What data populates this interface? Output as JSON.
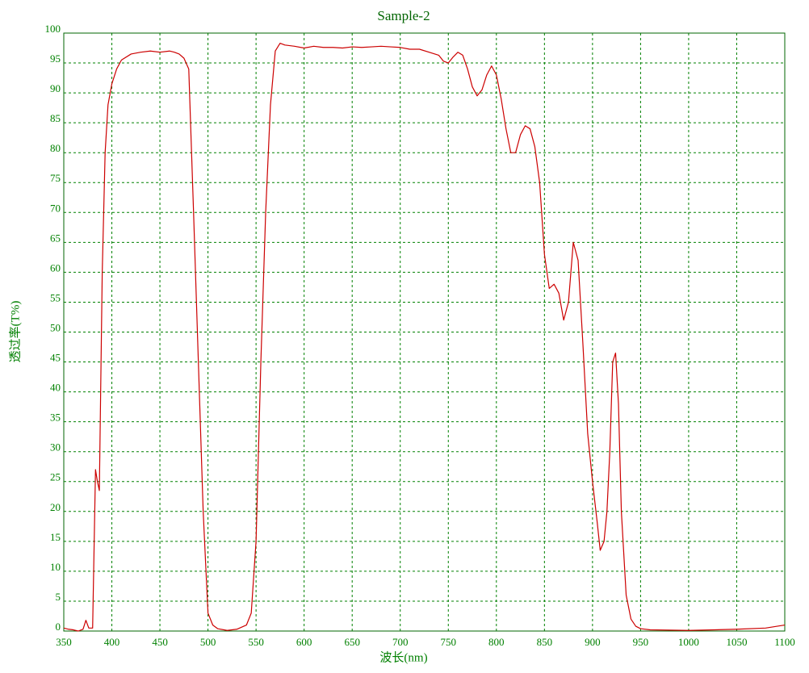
{
  "chart_data": {
    "type": "line",
    "title": "Sample-2",
    "xlabel": "波长(nm)",
    "ylabel": "透过率(T%)",
    "x": [
      350,
      355,
      360,
      365,
      370,
      373,
      376,
      380,
      383,
      385,
      387,
      390,
      393,
      396,
      400,
      405,
      410,
      420,
      430,
      440,
      450,
      460,
      465,
      470,
      475,
      480,
      485,
      490,
      495,
      500,
      505,
      510,
      520,
      530,
      540,
      545,
      550,
      555,
      560,
      565,
      570,
      575,
      580,
      590,
      600,
      610,
      620,
      630,
      640,
      650,
      660,
      670,
      680,
      690,
      700,
      710,
      720,
      730,
      740,
      745,
      750,
      755,
      760,
      765,
      770,
      775,
      780,
      785,
      790,
      795,
      800,
      805,
      810,
      815,
      820,
      825,
      830,
      835,
      840,
      845,
      850,
      855,
      860,
      865,
      870,
      875,
      880,
      885,
      890,
      895,
      900,
      905,
      908,
      912,
      915,
      918,
      921,
      924,
      927,
      930,
      935,
      940,
      945,
      950,
      960,
      1000,
      1050,
      1080,
      1100
    ],
    "series": [
      {
        "name": "Sample-2",
        "color": "#cc0000",
        "values": [
          0.5,
          0.3,
          0.2,
          0,
          0.3,
          1.8,
          0.5,
          0.5,
          27,
          25,
          23.5,
          60,
          80,
          88,
          91.5,
          94,
          95.5,
          96.5,
          96.8,
          97,
          96.8,
          97,
          96.8,
          96.5,
          95.8,
          94,
          70,
          45,
          20,
          3,
          1,
          0.4,
          0.1,
          0.3,
          1,
          3,
          15,
          45,
          70,
          88,
          97,
          98.3,
          98,
          97.8,
          97.5,
          97.8,
          97.6,
          97.6,
          97.5,
          97.7,
          97.6,
          97.7,
          97.8,
          97.7,
          97.6,
          97.3,
          97.3,
          96.8,
          96.3,
          95.3,
          95,
          96,
          96.8,
          96.3,
          94,
          91,
          89.5,
          90.5,
          93,
          94.5,
          93,
          89,
          84,
          80,
          80,
          83,
          84.5,
          84,
          81,
          75,
          63,
          57.3,
          58,
          56.5,
          52,
          55,
          65,
          62,
          48,
          33,
          25,
          18,
          13.5,
          15,
          20,
          30,
          45,
          46.5,
          38,
          20,
          6,
          2,
          0.8,
          0.4,
          0.2,
          0.1,
          0.3,
          0.5,
          1
        ]
      }
    ],
    "xlim": [
      350,
      1100
    ],
    "xticks": [
      350,
      400,
      450,
      500,
      550,
      600,
      650,
      700,
      750,
      800,
      850,
      900,
      950,
      1000,
      1050,
      1100
    ],
    "ylim": [
      0,
      100
    ],
    "yticks": [
      0,
      5,
      10,
      15,
      20,
      25,
      30,
      35,
      40,
      45,
      50,
      55,
      60,
      65,
      70,
      75,
      80,
      85,
      90,
      95,
      100
    ],
    "grid": true
  }
}
